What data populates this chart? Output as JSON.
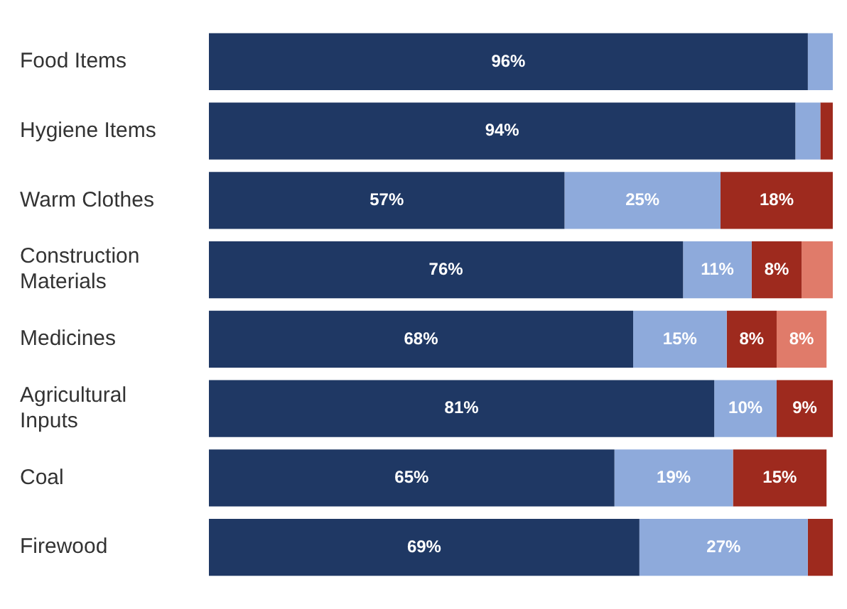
{
  "chart_data": {
    "type": "bar",
    "orientation": "horizontal",
    "stacked": true,
    "categories": [
      "Food Items",
      "Hygiene Items",
      "Warm Clothes",
      "Construction Materials",
      "Medicines",
      "Agricultural Inputs",
      "Coal",
      "Firewood"
    ],
    "series": [
      {
        "color": "#1f3864",
        "values": [
          96,
          94,
          57,
          76,
          68,
          81,
          65,
          69
        ],
        "value_labels": [
          "96%",
          "94%",
          "57%",
          "76%",
          "68%",
          "81%",
          "65%",
          "69%"
        ]
      },
      {
        "color": "#8eaadb",
        "values": [
          4,
          4,
          25,
          11,
          15,
          10,
          19,
          27
        ],
        "value_labels": [
          null,
          null,
          "25%",
          "11%",
          "15%",
          "10%",
          "19%",
          "27%"
        ]
      },
      {
        "color": "#9e2a1e",
        "values": [
          null,
          2,
          18,
          8,
          8,
          9,
          15,
          4
        ],
        "value_labels": [
          null,
          null,
          "18%",
          "8%",
          "8%",
          "9%",
          "15%",
          null
        ]
      },
      {
        "color": "#e07b6a",
        "values": [
          null,
          null,
          null,
          5,
          8,
          null,
          null,
          null
        ],
        "value_labels": [
          null,
          null,
          null,
          null,
          "8%",
          null,
          null,
          null
        ]
      }
    ],
    "xlim": [
      0,
      100
    ],
    "tick_labels": "y",
    "legend": false
  }
}
